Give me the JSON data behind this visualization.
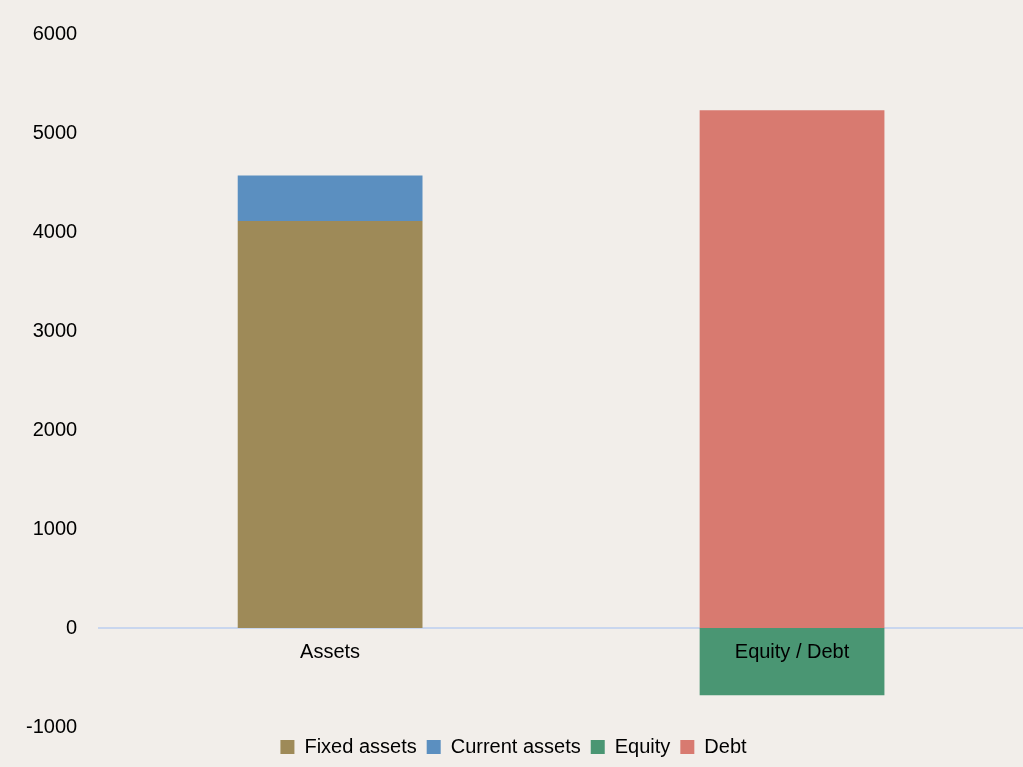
{
  "chart_data": {
    "type": "bar",
    "stacked": true,
    "categories": [
      "Assets",
      "Equity / Debt"
    ],
    "series": [
      {
        "name": "Fixed assets",
        "color": "#9e8a58",
        "values": [
          4110,
          null
        ]
      },
      {
        "name": "Current assets",
        "color": "#5b8fc0",
        "values": [
          460,
          null
        ]
      },
      {
        "name": "Equity",
        "color": "#4a9673",
        "values": [
          null,
          -680
        ]
      },
      {
        "name": "Debt",
        "color": "#d87a70",
        "values": [
          null,
          5230
        ]
      }
    ],
    "ylim": [
      -1000,
      6000
    ],
    "yticks": [
      -1000,
      0,
      1000,
      2000,
      3000,
      4000,
      5000,
      6000
    ],
    "grid": false,
    "legend": "bottom"
  }
}
